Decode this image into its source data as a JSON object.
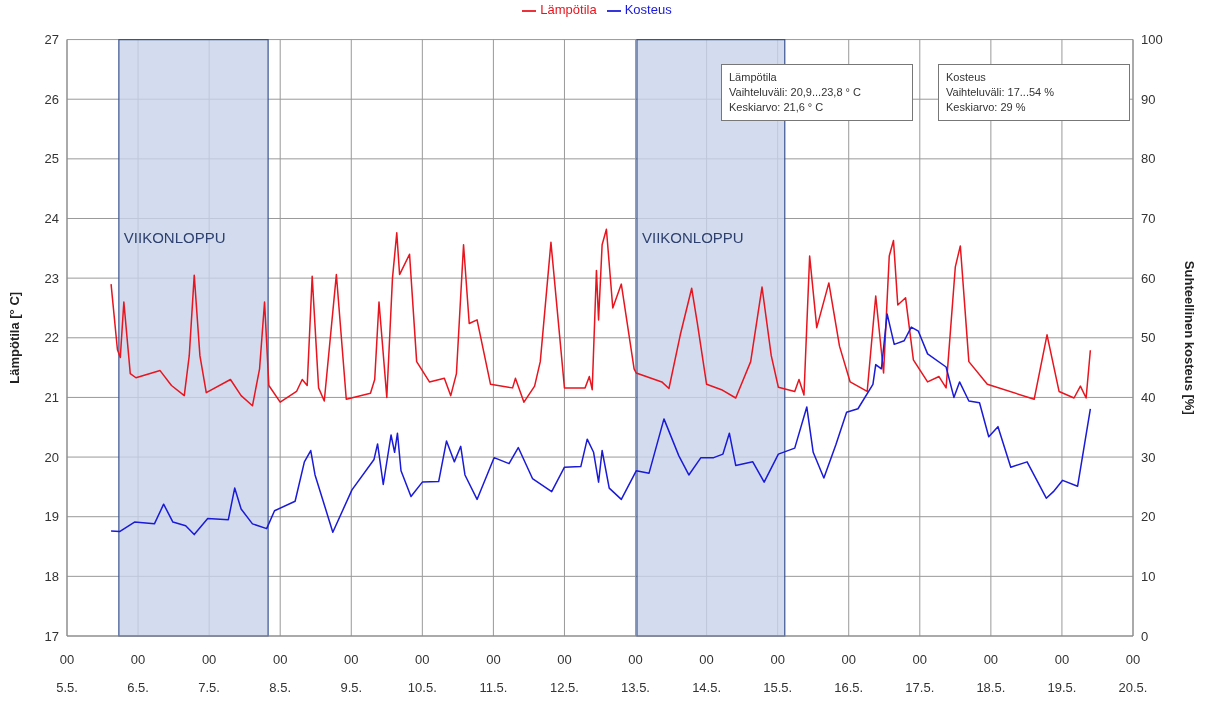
{
  "chart_data": {
    "type": "line",
    "ylabel": "Lämpötila [° C]",
    "y2label": "Suhteellinen kosteus [%]",
    "xlim": [
      "--05-05T00:00",
      "--05-20T00:00"
    ],
    "xticks": [
      {
        "value": "--05-05T00:00",
        "label": "00\n5.5."
      },
      {
        "value": "--05-06T00:00",
        "label": "00\n6.5."
      },
      {
        "value": "--05-07T00:00",
        "label": "00\n7.5."
      },
      {
        "value": "--05-08T00:00",
        "label": "00\n8.5."
      },
      {
        "value": "--05-09T00:00",
        "label": "00\n9.5."
      },
      {
        "value": "--05-10T00:00",
        "label": "00\n10.5."
      },
      {
        "value": "--05-11T00:00",
        "label": "00\n11.5."
      },
      {
        "value": "--05-12T00:00",
        "label": "00\n12.5."
      },
      {
        "value": "--05-13T00:00",
        "label": "00\n13.5."
      },
      {
        "value": "--05-14T00:00",
        "label": "00\n14.5."
      },
      {
        "value": "--05-15T00:00",
        "label": "00\n15.5."
      },
      {
        "value": "--05-16T00:00",
        "label": "00\n16.5."
      },
      {
        "value": "--05-17T00:00",
        "label": "00\n17.5."
      },
      {
        "value": "--05-18T00:00",
        "label": "00\n18.5."
      },
      {
        "value": "--05-19T00:00",
        "label": "00\n19.5."
      },
      {
        "value": "--05-20T00:00",
        "label": "00\n20.5."
      }
    ],
    "ylim": [
      17,
      27
    ],
    "yticks": [
      17,
      18,
      19,
      20,
      21,
      22,
      23,
      24,
      25,
      26,
      27
    ],
    "y2lim": [
      0,
      100
    ],
    "y2ticks": [
      0,
      10,
      20,
      30,
      40,
      50,
      60,
      70,
      80,
      90,
      100
    ],
    "grid": true,
    "legend": "top",
    "marker": "none",
    "line_style": "solid",
    "bands": [
      {
        "axis": "x",
        "from": "--05-05T17:31",
        "to": "--05-07T19:55",
        "label": "VIIKONLOPPU",
        "color": "#c8d3ea"
      },
      {
        "axis": "x",
        "from": "--05-13T00:29",
        "to": "--05-15T02:24",
        "label": "VIIKONLOPPU",
        "color": "#c8d3ea"
      }
    ],
    "annotations": [
      "Lämpötila\nVaihteluväli: 20,9...23,8 ° C\nKeskiarvo: 21,6 ° C",
      "Kosteus\nVaihteluväli: 17...54 %\nKeskiarvo: 29 %"
    ],
    "series": [
      {
        "name": "Lämpötila",
        "color": "#e8141e",
        "x": [
          "--05-05T14:53",
          "--05-05T17:02",
          "--05-05T18:00",
          "--05-05T19:12",
          "--05-05T21:22",
          "--05-05T23:17",
          "--05-06T07:26",
          "--05-06T11:17",
          "--05-06T15:36",
          "--05-06T17:17",
          "--05-06T18:58",
          "--05-06T20:53",
          "--05-06T23:02",
          "--05-07T07:12",
          "--05-07T10:48",
          "--05-07T14:38",
          "--05-07T17:02",
          "--05-07T18:43",
          "--05-07T20:10",
          "--05-08T00:00",
          "--05-08T05:31",
          "--05-08T07:26",
          "--05-08T09:07",
          "--05-08T10:48",
          "--05-08T12:58",
          "--05-08T14:53",
          "--05-08T18:58",
          "--05-08T22:19",
          "--05-09T06:29",
          "--05-09T07:55",
          "--05-09T09:22",
          "--05-09T12:00",
          "--05-09T13:55",
          "--05-09T15:22",
          "--05-09T16:19",
          "--05-09T19:41",
          "--05-09T22:05",
          "--05-10T02:24",
          "--05-10T07:26",
          "--05-10T09:36",
          "--05-10T11:31",
          "--05-10T13:55",
          "--05-10T15:50",
          "--05-10T18:29",
          "--05-10T23:02",
          "--05-11T06:29",
          "--05-11T07:26",
          "--05-11T10:19",
          "--05-11T13:55",
          "--05-11T15:50",
          "--05-11T19:26",
          "--05-12T00:00",
          "--05-12T06:58",
          "--05-12T08:24",
          "--05-12T09:22",
          "--05-12T10:48",
          "--05-12T11:31",
          "--05-12T12:43",
          "--05-12T14:10",
          "--05-12T16:19",
          "--05-12T19:12",
          "--05-12T23:31",
          "--05-13T00:14",
          "--05-13T08:53",
          "--05-13T11:17",
          "--05-13T15:07",
          "--05-13T18:58",
          "--05-13T20:53",
          "--05-14T00:00",
          "--05-14T05:02",
          "--05-14T09:50",
          "--05-14T14:53",
          "--05-14T18:43",
          "--05-14T21:50",
          "--05-15T00:14",
          "--05-15T05:46",
          "--05-15T07:12",
          "--05-15T08:53",
          "--05-15T10:48",
          "--05-15T13:12",
          "--05-15T17:17",
          "--05-15T20:53",
          "--05-16T00:29",
          "--05-16T06:14",
          "--05-16T09:07",
          "--05-16T11:46",
          "--05-16T13:41",
          "--05-16T15:07",
          "--05-16T16:34",
          "--05-16T19:12",
          "--05-16T21:50",
          "--05-17T02:38",
          "--05-17T06:29",
          "--05-17T08:53",
          "--05-17T12:00",
          "--05-17T13:41",
          "--05-17T16:34",
          "--05-17T22:48",
          "--05-18T14:38",
          "--05-18T18:58",
          "--05-18T23:02",
          "--05-19T04:05",
          "--05-19T06:14",
          "--05-19T08:10",
          "--05-19T09:36"
        ],
        "values": [
          22.9,
          21.8,
          21.67,
          22.6,
          21.4,
          21.33,
          21.45,
          21.2,
          21.03,
          21.7,
          23.05,
          21.7,
          21.08,
          21.3,
          21.03,
          20.86,
          21.48,
          22.6,
          21.2,
          20.92,
          21.1,
          21.3,
          21.2,
          23.03,
          21.16,
          20.94,
          23.06,
          20.97,
          21.07,
          21.3,
          22.6,
          21.0,
          23.0,
          23.76,
          23.06,
          23.4,
          21.6,
          21.26,
          21.32,
          21.03,
          21.4,
          23.56,
          22.24,
          22.3,
          21.22,
          21.16,
          21.32,
          20.92,
          21.19,
          21.6,
          23.6,
          21.16,
          21.16,
          21.35,
          21.13,
          23.13,
          22.3,
          23.56,
          23.82,
          22.5,
          22.9,
          21.48,
          21.41,
          21.26,
          21.15,
          22.05,
          22.83,
          22.24,
          21.22,
          21.13,
          20.99,
          21.6,
          22.85,
          21.7,
          21.17,
          21.1,
          21.3,
          21.04,
          23.37,
          22.17,
          22.92,
          21.86,
          21.26,
          21.1,
          22.7,
          21.41,
          23.37,
          23.63,
          22.55,
          22.67,
          21.63,
          21.26,
          21.35,
          21.16,
          23.19,
          23.54,
          21.6,
          21.22,
          20.97,
          22.05,
          21.1,
          20.99,
          21.19,
          20.99,
          21.79
        ]
      },
      {
        "name": "Kosteus",
        "color": "#1a1ad8",
        "axis": "y2",
        "x": [
          "--05-05T14:53",
          "--05-05T17:46",
          "--05-05T22:48",
          "--05-06T05:31",
          "--05-06T08:38",
          "--05-06T11:46",
          "--05-06T16:05",
          "--05-06T18:58",
          "--05-06T23:31",
          "--05-07T06:29",
          "--05-07T08:38",
          "--05-07T10:48",
          "--05-07T14:38",
          "--05-07T19:26",
          "--05-07T22:05",
          "--05-08T05:02",
          "--05-08T08:10",
          "--05-08T10:19",
          "--05-08T11:46",
          "--05-08T17:46",
          "--05-09T00:14",
          "--05-09T07:41",
          "--05-09T08:53",
          "--05-09T10:48",
          "--05-09T13:26",
          "--05-09T14:38",
          "--05-09T15:36",
          "--05-09T16:48",
          "--05-09T20:10",
          "--05-10T00:00",
          "--05-10T05:31",
          "--05-10T08:10",
          "--05-10T10:48",
          "--05-10T12:58",
          "--05-10T14:24",
          "--05-10T18:29",
          "--05-11T00:14",
          "--05-11T05:17",
          "--05-11T08:24",
          "--05-11T13:12",
          "--05-11T19:41",
          "--05-12T00:00",
          "--05-12T05:31",
          "--05-12T07:41",
          "--05-12T09:50",
          "--05-12T11:31",
          "--05-12T12:43",
          "--05-12T15:07",
          "--05-12T19:12",
          "--05-13T00:14",
          "--05-13T04:34",
          "--05-13T09:36",
          "--05-13T14:38",
          "--05-13T18:00",
          "--05-13T22:05",
          "--05-14T02:24",
          "--05-14T05:31",
          "--05-14T07:41",
          "--05-14T09:50",
          "--05-14T15:36",
          "--05-14T19:26",
          "--05-15T00:14",
          "--05-15T05:46",
          "--05-15T09:50",
          "--05-15T12:00",
          "--05-15T15:36",
          "--05-15T19:41",
          "--05-15T23:17",
          "--05-16T03:07",
          "--05-16T08:10",
          "--05-16T09:07",
          "--05-16T11:02",
          "--05-16T12:58",
          "--05-16T15:22",
          "--05-16T18:43",
          "--05-16T21:07",
          "--05-16T23:31",
          "--05-17T02:38",
          "--05-17T08:53",
          "--05-17T11:31",
          "--05-17T13:26",
          "--05-17T16:34",
          "--05-17T20:10",
          "--05-17T23:17",
          "--05-18T02:24",
          "--05-18T06:43",
          "--05-18T12:14",
          "--05-18T18:43",
          "--05-18T21:07",
          "--05-19T00:14",
          "--05-19T05:17",
          "--05-19T09:36"
        ],
        "values": [
          17.6,
          17.5,
          19.1,
          18.8,
          22.1,
          19.1,
          18.5,
          17.0,
          19.7,
          19.5,
          24.8,
          21.3,
          18.8,
          18.0,
          21.0,
          22.6,
          29.2,
          31.1,
          27.0,
          17.4,
          24.5,
          29.6,
          32.2,
          25.4,
          33.7,
          30.8,
          34.0,
          27.7,
          23.4,
          25.8,
          25.9,
          32.7,
          29.2,
          31.8,
          27.0,
          22.9,
          29.9,
          28.9,
          31.6,
          26.4,
          24.2,
          28.3,
          28.4,
          33.0,
          30.8,
          25.8,
          31.1,
          24.8,
          22.9,
          27.7,
          27.3,
          36.4,
          30.2,
          27.0,
          29.9,
          29.9,
          30.5,
          34.0,
          28.6,
          29.2,
          25.8,
          30.5,
          31.5,
          38.4,
          30.8,
          26.5,
          32.1,
          37.5,
          38.1,
          42.2,
          45.5,
          44.8,
          54.0,
          48.9,
          49.5,
          51.8,
          51.1,
          47.3,
          45.1,
          40.0,
          42.6,
          39.4,
          39.1,
          33.4,
          35.1,
          28.3,
          29.2,
          23.1,
          24.2,
          26.1,
          25.1,
          38.1
        ]
      }
    ]
  }
}
